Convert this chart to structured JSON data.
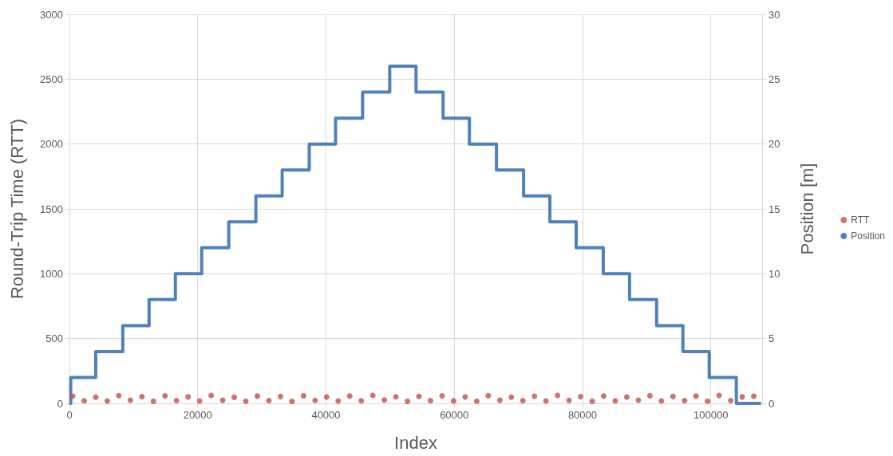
{
  "chart_data": {
    "type": "scatter",
    "xlabel": "Index",
    "ylabel": "Round-Trip Time (RTT)",
    "y2label": "Position [m]",
    "xlim": [
      0,
      108000
    ],
    "xticks": [
      0,
      20000,
      40000,
      60000,
      80000,
      100000
    ],
    "ylim": [
      0,
      3000
    ],
    "yticks": [
      0,
      500,
      1000,
      1500,
      2000,
      2500,
      3000
    ],
    "y2lim": [
      0,
      30
    ],
    "y2ticks": [
      0,
      5,
      10,
      15,
      20,
      25,
      30
    ],
    "grid": true,
    "legend": "right",
    "series": [
      {
        "name": "RTT",
        "marker": "circle",
        "color": "#c0504d",
        "x": [
          500,
          2300,
          4100,
          5900,
          7700,
          9500,
          11300,
          13100,
          14900,
          16700,
          18500,
          20300,
          22100,
          23900,
          25700,
          27500,
          29300,
          31100,
          32900,
          34700,
          36500,
          38300,
          40100,
          41900,
          43700,
          45500,
          47300,
          49100,
          50900,
          52700,
          54500,
          56300,
          58100,
          59900,
          61700,
          63500,
          65300,
          67100,
          68900,
          70700,
          72500,
          74300,
          76100,
          77900,
          79700,
          81500,
          83300,
          85100,
          86900,
          88700,
          90500,
          92300,
          94100,
          95900,
          97700,
          99500,
          101300,
          103100,
          104900,
          106700
        ],
        "values": [
          55,
          20,
          48,
          18,
          60,
          25,
          52,
          16,
          58,
          22,
          50,
          19,
          62,
          24,
          47,
          17,
          56,
          21,
          53,
          15,
          59,
          23,
          49,
          18,
          57,
          20,
          61,
          26,
          51,
          16,
          54,
          22,
          58,
          19,
          50,
          17,
          60,
          24,
          48,
          21,
          55,
          18,
          62,
          23,
          52,
          16,
          57,
          20,
          49,
          25,
          59,
          19,
          53,
          22,
          56,
          17,
          61,
          21,
          50,
          55
        ]
      },
      {
        "name": "Position",
        "type": "step",
        "marker": "none",
        "axis": "y2",
        "color": "#4f81bd",
        "x": [
          0,
          200,
          4100,
          8320,
          12420,
          16520,
          20620,
          24840,
          29070,
          33170,
          37390,
          41490,
          45710,
          49940,
          54040,
          58260,
          62360,
          66580,
          70810,
          74910,
          79010,
          83230,
          87330,
          91550,
          95650,
          99750,
          103980,
          107830
        ],
        "values": [
          0,
          2,
          4,
          6,
          8,
          10,
          12,
          14,
          16,
          18,
          20,
          22,
          24,
          26,
          24,
          22,
          20,
          18,
          16,
          14,
          12,
          10,
          8,
          6,
          4,
          2,
          0,
          0
        ]
      }
    ]
  }
}
